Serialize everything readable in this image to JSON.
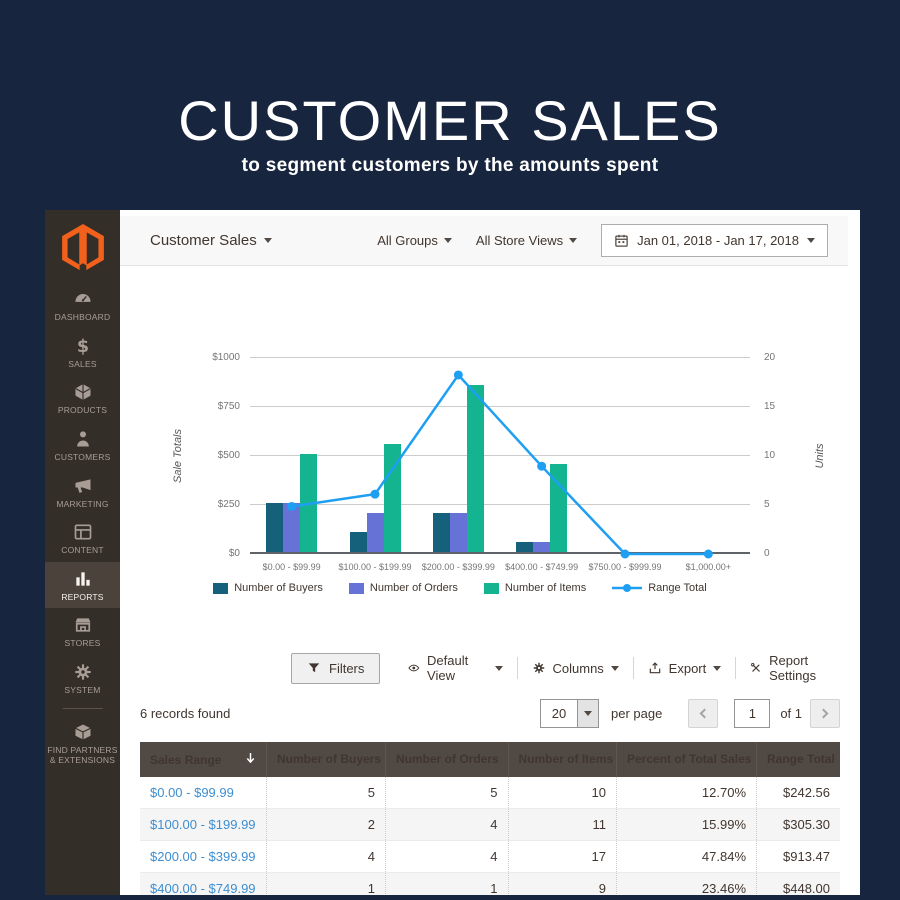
{
  "hero": {
    "title": "CUSTOMER SALES",
    "subtitle": "to segment customers by the amounts spent"
  },
  "sidebar": {
    "items": [
      {
        "id": "dashboard",
        "label": "DASHBOARD",
        "icon": "dashboard",
        "active": false
      },
      {
        "id": "sales",
        "label": "SALES",
        "icon": "sales",
        "active": false
      },
      {
        "id": "products",
        "label": "PRODUCTS",
        "icon": "products",
        "active": false
      },
      {
        "id": "customers",
        "label": "CUSTOMERS",
        "icon": "customers",
        "active": false
      },
      {
        "id": "marketing",
        "label": "MARKETING",
        "icon": "marketing",
        "active": false
      },
      {
        "id": "content",
        "label": "CONTENT",
        "icon": "content",
        "active": false
      },
      {
        "id": "reports",
        "label": "REPORTS",
        "icon": "reports",
        "active": true
      },
      {
        "id": "stores",
        "label": "STORES",
        "icon": "stores",
        "active": false
      },
      {
        "id": "system",
        "label": "SYSTEM",
        "icon": "system",
        "active": false
      },
      {
        "id": "find-partners",
        "label": "FIND PARTNERS\n& EXTENSIONS",
        "icon": "partners",
        "active": false,
        "divider_above": true
      }
    ]
  },
  "header": {
    "page_title": "Customer Sales",
    "groups_filter": "All Groups",
    "store_views_filter": "All Store Views",
    "date_range": "Jan 01, 2018 - Jan 17, 2018"
  },
  "chart_data": {
    "type": "bar",
    "note": "grouped bars on right Units axis with line series on left Sale Totals axis",
    "categories": [
      "$0.00 - $99.99",
      "$100.00 - $199.99",
      "$200.00 - $399.99",
      "$400.00 - $749.99",
      "$750.00 - $999.99",
      "$1,000.00+"
    ],
    "series": [
      {
        "name": "Number of Buyers",
        "axis": "right",
        "color": "#15607a",
        "values": [
          5,
          2,
          4,
          1,
          0,
          0
        ]
      },
      {
        "name": "Number of Orders",
        "axis": "right",
        "color": "#6672d6",
        "values": [
          5,
          4,
          4,
          1,
          0,
          0
        ]
      },
      {
        "name": "Number of Items",
        "axis": "right",
        "color": "#14b491",
        "values": [
          10,
          11,
          17,
          9,
          0,
          0
        ]
      }
    ],
    "line_series": {
      "name": "Range Total",
      "axis": "left",
      "color": "#1e9ff2",
      "values": [
        242.56,
        305.3,
        913.47,
        448.0,
        0,
        0
      ]
    },
    "left_axis": {
      "label": "Sale Totals",
      "min": 0,
      "max": 1000,
      "ticks": [
        "$0",
        "$250",
        "$500",
        "$750",
        "$1000"
      ]
    },
    "right_axis": {
      "label": "Units",
      "min": 0,
      "max": 20,
      "ticks": [
        "0",
        "5",
        "10",
        "15",
        "20"
      ]
    },
    "grid": true,
    "legend_position": "bottom"
  },
  "toolbar": {
    "filters": "Filters",
    "default_view": "Default View",
    "columns": "Columns",
    "export": "Export",
    "report_settings": "Report Settings"
  },
  "grid": {
    "records_found": "6 records found",
    "per_page_value": "20",
    "per_page_label": "per page",
    "page_value": "1",
    "page_of": "of 1",
    "columns": [
      "Sales Range",
      "Number of Buyers",
      "Number of Orders",
      "Number of Items",
      "Percent of Total Sales",
      "Range Total"
    ],
    "sorted_column": "Sales Range",
    "rows": [
      [
        "$0.00 - $99.99",
        "5",
        "5",
        "10",
        "12.70%",
        "$242.56"
      ],
      [
        "$100.00 - $199.99",
        "2",
        "4",
        "11",
        "15.99%",
        "$305.30"
      ],
      [
        "$200.00 - $399.99",
        "4",
        "4",
        "17",
        "47.84%",
        "$913.47"
      ],
      [
        "$400.00 - $749.99",
        "1",
        "1",
        "9",
        "23.46%",
        "$448.00"
      ]
    ]
  },
  "colors": {
    "background_navy": "#18253e",
    "sidebar_bg": "#342e29",
    "sidebar_active_bg": "#4a423b",
    "magento_orange": "#f2611c",
    "table_header_bg": "#514943",
    "link_blue": "#3e8ed0",
    "bar_buyers": "#15607a",
    "bar_orders": "#6672d6",
    "bar_items": "#14b491",
    "line_range_total": "#1e9ff2"
  }
}
